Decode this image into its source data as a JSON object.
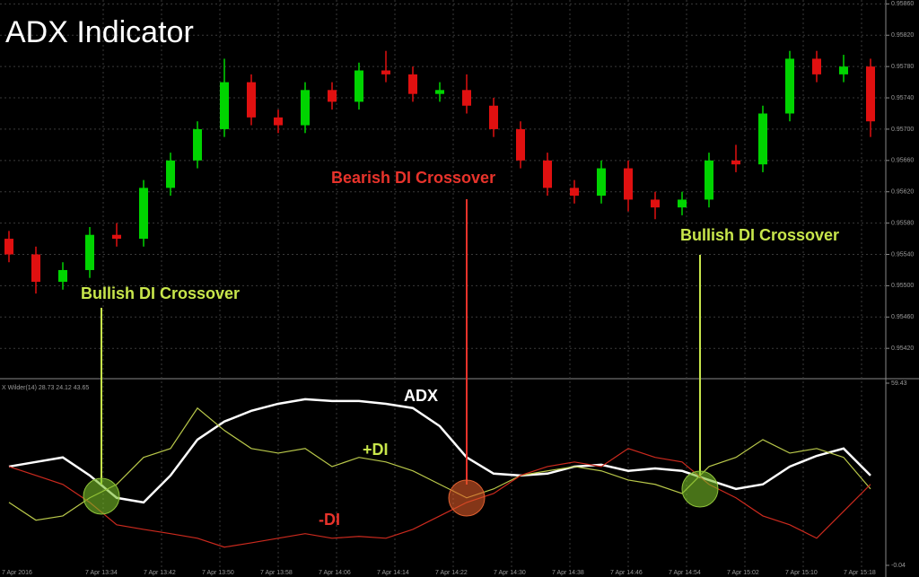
{
  "chart_data": [
    {
      "type": "candlestick",
      "title": "ADX Indicator",
      "open": [
        0.9556,
        0.9554,
        0.95505,
        0.9552,
        0.95565,
        0.9556,
        0.95625,
        0.9566,
        0.957,
        0.9576,
        0.95715,
        0.95705,
        0.9575,
        0.95735,
        0.95775,
        0.9577,
        0.95745,
        0.9575,
        0.9573,
        0.957,
        0.9566,
        0.95625,
        0.95615,
        0.9565,
        0.9561,
        0.956,
        0.9561,
        0.9566,
        0.95655,
        0.9572,
        0.9579,
        0.9577,
        0.9578
      ],
      "high": [
        0.9557,
        0.9555,
        0.9553,
        0.95575,
        0.9558,
        0.95635,
        0.9567,
        0.9571,
        0.9579,
        0.9577,
        0.95725,
        0.9576,
        0.9576,
        0.95785,
        0.958,
        0.9578,
        0.9576,
        0.9577,
        0.9574,
        0.9571,
        0.9567,
        0.95635,
        0.9566,
        0.9566,
        0.9562,
        0.9562,
        0.9567,
        0.9568,
        0.9573,
        0.958,
        0.958,
        0.95795,
        0.9579
      ],
      "low": [
        0.9553,
        0.9549,
        0.95495,
        0.9551,
        0.9555,
        0.9555,
        0.95615,
        0.9565,
        0.9569,
        0.95705,
        0.95695,
        0.95695,
        0.95725,
        0.95725,
        0.9576,
        0.95735,
        0.95735,
        0.9572,
        0.9569,
        0.9565,
        0.95615,
        0.95605,
        0.95605,
        0.95595,
        0.95585,
        0.9559,
        0.956,
        0.95645,
        0.95645,
        0.9571,
        0.9576,
        0.9576,
        0.9569
      ],
      "close": [
        0.9554,
        0.95505,
        0.9552,
        0.95565,
        0.9556,
        0.95625,
        0.9566,
        0.957,
        0.9576,
        0.95715,
        0.95705,
        0.9575,
        0.95735,
        0.95775,
        0.9577,
        0.95745,
        0.9575,
        0.9573,
        0.957,
        0.9566,
        0.95625,
        0.95615,
        0.9565,
        0.9561,
        0.956,
        0.9561,
        0.9566,
        0.95655,
        0.9572,
        0.9579,
        0.9577,
        0.9578,
        0.9571
      ],
      "up_color": "#00d400",
      "down_color": "#e01010",
      "ylim": [
        0.95395,
        0.95865
      ],
      "yticks": [
        {
          "value": 0.9586,
          "label": "0.95860"
        },
        {
          "value": 0.9582,
          "label": "0.95820"
        },
        {
          "value": 0.9578,
          "label": "0.95780"
        },
        {
          "value": 0.9574,
          "label": "0.95740"
        },
        {
          "value": 0.957,
          "label": "0.95700"
        },
        {
          "value": 0.9566,
          "label": "0.95660"
        },
        {
          "value": 0.9562,
          "label": "0.95620"
        },
        {
          "value": 0.9558,
          "label": "0.95580"
        },
        {
          "value": 0.9554,
          "label": "0.95540"
        },
        {
          "value": 0.955,
          "label": "0.95500"
        },
        {
          "value": 0.9546,
          "label": "0.95460"
        },
        {
          "value": 0.9542,
          "label": "0.95420"
        }
      ],
      "grid": true,
      "annotations": [
        "Bullish DI Crossover",
        "Bearish DI Crossover",
        "Bullish DI Crossover"
      ]
    },
    {
      "type": "line",
      "title": "X Wilder(14) 28.73 24.12 43.65",
      "series": [
        {
          "name": "ADX",
          "color": "#ffffff",
          "values": [
            32.2,
            33.7,
            35.2,
            29.3,
            22.0,
            20.5,
            29.3,
            41.0,
            46.9,
            50.4,
            52.7,
            54.2,
            53.6,
            53.6,
            52.7,
            51.3,
            45.4,
            35.2,
            29.9,
            29.3,
            29.9,
            32.2,
            32.8,
            30.8,
            31.6,
            30.8,
            27.8,
            24.9,
            26.4,
            32.2,
            35.7,
            38.1,
            29.3
          ]
        },
        {
          "name": "+DI",
          "color": "#b9c84a",
          "values": [
            20.5,
            14.7,
            16.1,
            22.0,
            26.4,
            35.2,
            38.1,
            51.3,
            44.0,
            38.1,
            36.6,
            38.1,
            32.2,
            35.2,
            33.7,
            30.8,
            26.4,
            22.0,
            24.9,
            29.3,
            30.8,
            32.2,
            30.8,
            27.8,
            26.4,
            23.4,
            32.2,
            35.2,
            41.0,
            36.6,
            38.1,
            35.2,
            24.9
          ]
        },
        {
          "name": "-DI",
          "color": "#cc2a1e",
          "values": [
            32.2,
            29.3,
            26.4,
            20.5,
            13.2,
            11.7,
            10.3,
            8.8,
            5.9,
            7.3,
            8.8,
            10.3,
            8.8,
            9.4,
            8.8,
            11.7,
            16.1,
            20.5,
            23.4,
            29.3,
            32.2,
            33.7,
            32.2,
            38.1,
            35.2,
            33.7,
            26.4,
            22.0,
            16.1,
            13.2,
            8.8,
            17.6,
            26.4
          ]
        }
      ],
      "ylim": [
        -0.04,
        59.43
      ],
      "yticks": [
        59.43,
        -0.04
      ],
      "x_axis_labels": [
        "7 Apr 2016",
        "7 Apr 13:34",
        "7 Apr 13:42",
        "7 Apr 13:50",
        "7 Apr 13:58",
        "7 Apr 14:06",
        "7 Apr 14:14",
        "7 Apr 14:22",
        "7 Apr 14:30",
        "7 Apr 14:38",
        "7 Apr 14:46",
        "7 Apr 14:54",
        "7 Apr 15:02",
        "7 Apr 15:10",
        "7 Apr 15:18"
      ]
    }
  ]
}
